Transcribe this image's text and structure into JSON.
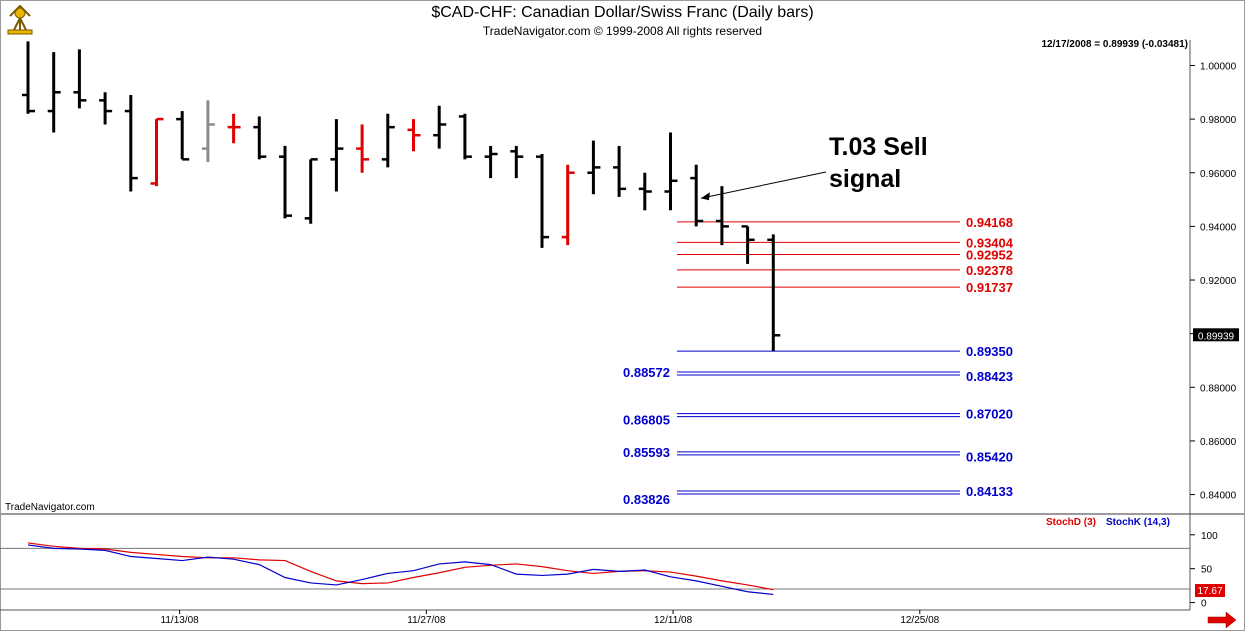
{
  "header": {
    "title": "$CAD-CHF:  Canadian Dollar/Swiss Franc  (Daily bars)",
    "subtitle": "TradeNavigator.com © 1999-2008 All rights reserved",
    "info": "12/17/2008 = 0.89939 (-0.03481)",
    "watermark": "TradeNavigator.com"
  },
  "colors": {
    "up": "#000000",
    "highlight": "#e00000",
    "neutral": "#8c8c8c",
    "resistance": "#e00000",
    "support": "#0000cc",
    "stochD": "#e00000",
    "stochK": "#0000cc"
  },
  "chart_data": [
    {
      "type": "ohlc",
      "title": "$CAD-CHF:  Canadian Dollar/Swiss Franc  (Daily bars)",
      "ylim": [
        0.8335,
        1.0095
      ],
      "yticks": [
        "1.00000",
        "0.98000",
        "0.96000",
        "0.94000",
        "0.92000",
        "0.90000",
        "0.88000",
        "0.86000",
        "0.84000"
      ],
      "ytick_values": [
        1.0,
        0.98,
        0.96,
        0.94,
        0.92,
        0.9,
        0.88,
        0.86,
        0.84
      ],
      "xticks": [
        "11/13/08",
        "11/27/08",
        "12/11/08",
        "12/25/08"
      ],
      "xtick_index": [
        5.9,
        15.5,
        25.1,
        34.7
      ],
      "last_price_label": "0.89939",
      "bars": [
        {
          "o": 0.989,
          "h": 1.009,
          "l": 0.982,
          "c": 0.983,
          "color": "up"
        },
        {
          "o": 0.983,
          "h": 1.005,
          "l": 0.975,
          "c": 0.99,
          "color": "up"
        },
        {
          "o": 0.99,
          "h": 1.006,
          "l": 0.984,
          "c": 0.987,
          "color": "up"
        },
        {
          "o": 0.987,
          "h": 0.99,
          "l": 0.978,
          "c": 0.983,
          "color": "up"
        },
        {
          "o": 0.983,
          "h": 0.989,
          "l": 0.953,
          "c": 0.958,
          "color": "up"
        },
        {
          "o": 0.956,
          "h": 0.98,
          "l": 0.955,
          "c": 0.98,
          "color": "highlight"
        },
        {
          "o": 0.98,
          "h": 0.983,
          "l": 0.965,
          "c": 0.965,
          "color": "up"
        },
        {
          "o": 0.969,
          "h": 0.987,
          "l": 0.964,
          "c": 0.978,
          "color": "neutral"
        },
        {
          "o": 0.977,
          "h": 0.982,
          "l": 0.971,
          "c": 0.977,
          "color": "highlight"
        },
        {
          "o": 0.977,
          "h": 0.981,
          "l": 0.965,
          "c": 0.966,
          "color": "up"
        },
        {
          "o": 0.966,
          "h": 0.97,
          "l": 0.943,
          "c": 0.944,
          "color": "up"
        },
        {
          "o": 0.943,
          "h": 0.965,
          "l": 0.941,
          "c": 0.965,
          "color": "up"
        },
        {
          "o": 0.965,
          "h": 0.98,
          "l": 0.953,
          "c": 0.969,
          "color": "up"
        },
        {
          "o": 0.969,
          "h": 0.978,
          "l": 0.96,
          "c": 0.965,
          "color": "highlight"
        },
        {
          "o": 0.965,
          "h": 0.982,
          "l": 0.962,
          "c": 0.977,
          "color": "up"
        },
        {
          "o": 0.976,
          "h": 0.98,
          "l": 0.968,
          "c": 0.974,
          "color": "highlight"
        },
        {
          "o": 0.974,
          "h": 0.985,
          "l": 0.969,
          "c": 0.978,
          "color": "up"
        },
        {
          "o": 0.981,
          "h": 0.982,
          "l": 0.965,
          "c": 0.966,
          "color": "up"
        },
        {
          "o": 0.966,
          "h": 0.97,
          "l": 0.958,
          "c": 0.967,
          "color": "up"
        },
        {
          "o": 0.968,
          "h": 0.97,
          "l": 0.958,
          "c": 0.966,
          "color": "up"
        },
        {
          "o": 0.966,
          "h": 0.967,
          "l": 0.932,
          "c": 0.936,
          "color": "up"
        },
        {
          "o": 0.936,
          "h": 0.963,
          "l": 0.933,
          "c": 0.96,
          "color": "highlight"
        },
        {
          "o": 0.96,
          "h": 0.972,
          "l": 0.952,
          "c": 0.962,
          "color": "up"
        },
        {
          "o": 0.962,
          "h": 0.97,
          "l": 0.951,
          "c": 0.954,
          "color": "up"
        },
        {
          "o": 0.954,
          "h": 0.96,
          "l": 0.946,
          "c": 0.953,
          "color": "up"
        },
        {
          "o": 0.953,
          "h": 0.975,
          "l": 0.946,
          "c": 0.957,
          "color": "up"
        },
        {
          "o": 0.958,
          "h": 0.963,
          "l": 0.94,
          "c": 0.942,
          "color": "up"
        },
        {
          "o": 0.942,
          "h": 0.955,
          "l": 0.933,
          "c": 0.94,
          "color": "up"
        },
        {
          "o": 0.94,
          "h": 0.94,
          "l": 0.926,
          "c": 0.935,
          "color": "up"
        },
        {
          "o": 0.935,
          "h": 0.937,
          "l": 0.8935,
          "c": 0.8994,
          "color": "up"
        }
      ],
      "levels": [
        {
          "value": 0.94168,
          "label": "0.94168",
          "side": "right",
          "color": "resistance",
          "lines": 1
        },
        {
          "value": 0.93404,
          "label": "0.93404",
          "side": "right",
          "color": "resistance",
          "lines": 1
        },
        {
          "value": 0.92952,
          "label": "0.92952",
          "side": "right",
          "color": "resistance",
          "lines": 1
        },
        {
          "value": 0.92378,
          "label": "0.92378",
          "side": "right",
          "color": "resistance",
          "lines": 1
        },
        {
          "value": 0.91737,
          "label": "0.91737",
          "side": "right",
          "color": "resistance",
          "lines": 1
        },
        {
          "value": 0.8935,
          "label": "0.89350",
          "side": "right",
          "color": "support",
          "lines": 1
        },
        {
          "value": 0.88572,
          "label": "0.88572",
          "side": "left",
          "color": "support",
          "lines": 2
        },
        {
          "value": 0.88423,
          "label": "0.88423",
          "side": "right",
          "color": "support",
          "lines": 0
        },
        {
          "value": 0.8702,
          "label": "0.87020",
          "side": "right",
          "color": "support",
          "lines": 2
        },
        {
          "value": 0.86805,
          "label": "0.86805",
          "side": "left",
          "color": "support",
          "lines": 0
        },
        {
          "value": 0.85593,
          "label": "0.85593",
          "side": "left",
          "color": "support",
          "lines": 2
        },
        {
          "value": 0.8542,
          "label": "0.85420",
          "side": "right",
          "color": "support",
          "lines": 0
        },
        {
          "value": 0.84133,
          "label": "0.84133",
          "side": "right",
          "color": "support",
          "lines": 2
        },
        {
          "value": 0.83826,
          "label": "0.83826",
          "side": "left",
          "color": "support",
          "lines": 0
        }
      ],
      "annotation": {
        "lines": [
          "T.03 Sell",
          "signal"
        ],
        "points_to_bar": 27,
        "points_to_value": 0.9505
      }
    },
    {
      "type": "line",
      "ylim": [
        -8,
        110
      ],
      "yticks": [
        "100",
        "50",
        "0"
      ],
      "ytick_values": [
        100,
        50,
        0
      ],
      "reference_lines": [
        80,
        20
      ],
      "last_value_label": "17.67",
      "series": [
        {
          "name": "StochD (3)",
          "color": "stochD",
          "values": [
            88,
            83,
            80,
            79,
            74,
            71,
            68,
            66,
            66,
            63,
            62,
            46,
            32,
            28,
            29,
            37,
            44,
            52,
            55,
            57,
            53,
            47,
            43,
            46,
            47,
            45,
            39,
            32,
            26,
            19
          ]
        },
        {
          "name": "StochK (14,3)",
          "color": "stochK",
          "values": [
            85,
            80,
            79,
            77,
            68,
            65,
            62,
            67,
            64,
            56,
            37,
            29,
            26,
            34,
            43,
            47,
            57,
            60,
            56,
            42,
            40,
            42,
            49,
            46,
            48,
            38,
            32,
            24,
            16,
            12
          ]
        }
      ]
    }
  ]
}
